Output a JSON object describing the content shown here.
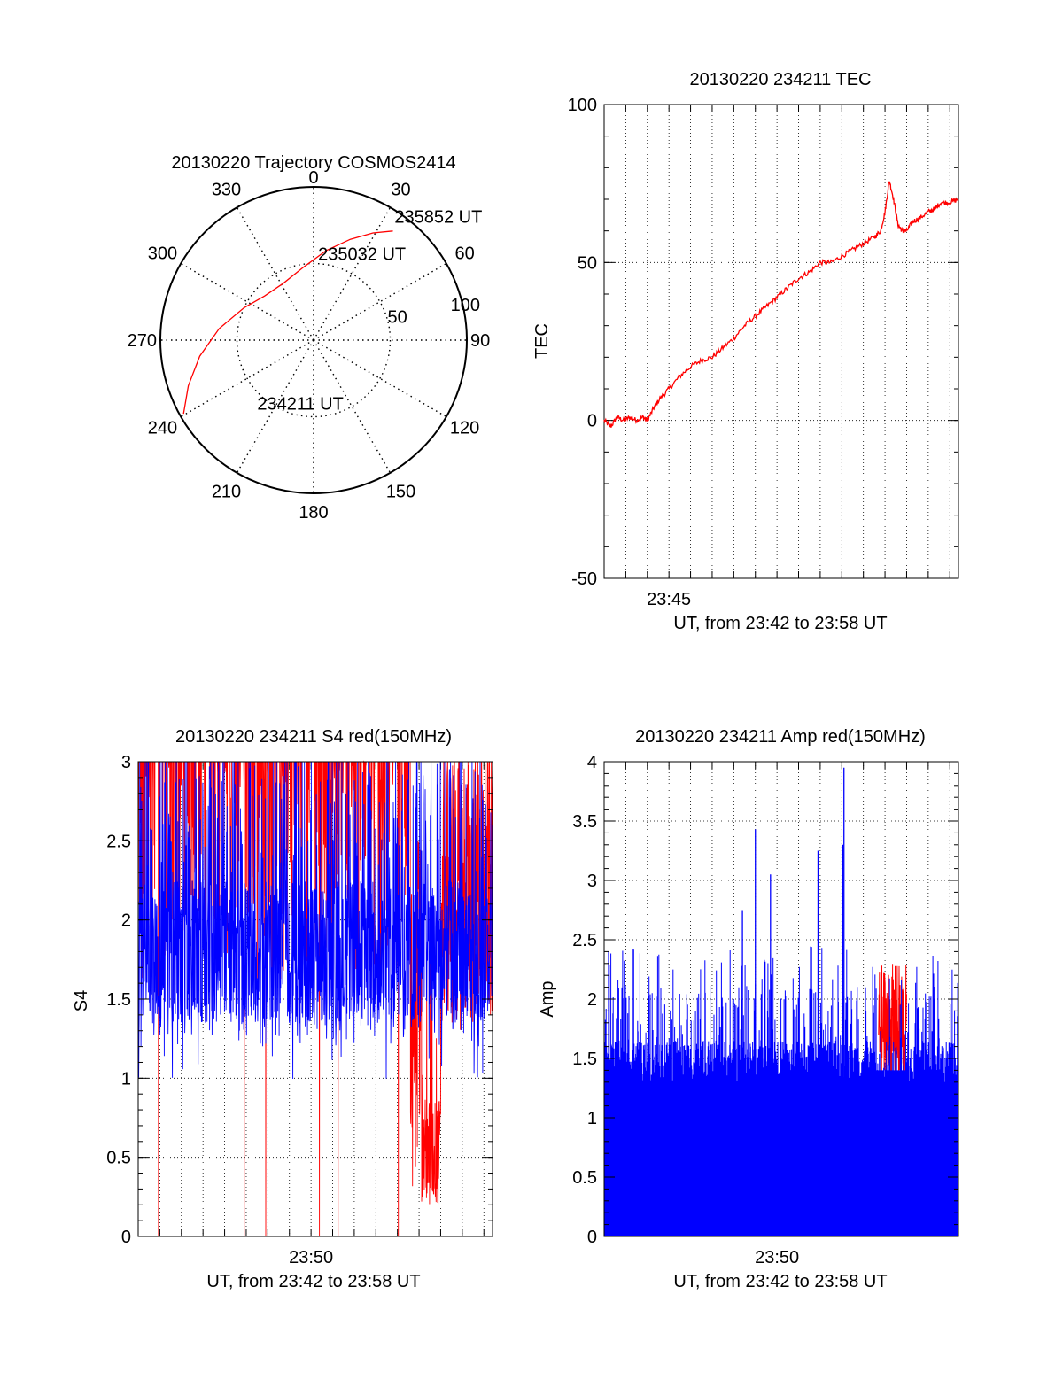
{
  "colors": {
    "red": "#ff0000",
    "blue": "#0000ff",
    "axis": "#000000",
    "grid": "#000000"
  },
  "chart_data": [
    {
      "type": "polar",
      "title": "20130220 Trajectory COSMOS2414",
      "angle_labels": [
        "0",
        "30",
        "60",
        "90",
        "120",
        "150",
        "180",
        "210",
        "240",
        "270",
        "300",
        "330"
      ],
      "radial_labels": [
        "50",
        "100"
      ],
      "radial_label_values": [
        50,
        100
      ],
      "rlim": [
        0,
        100
      ],
      "grid": true,
      "trajectory": {
        "color": "red",
        "points": [
          {
            "az": 240.5,
            "r": 97.5
          },
          {
            "az": 250,
            "r": 87
          },
          {
            "az": 262,
            "r": 75
          },
          {
            "az": 277,
            "r": 62
          },
          {
            "az": 295,
            "r": 50
          },
          {
            "az": 312,
            "r": 43
          },
          {
            "az": 332,
            "r": 42
          },
          {
            "az": 352,
            "r": 48
          },
          {
            "az": 8,
            "r": 59
          },
          {
            "az": 20,
            "r": 70
          },
          {
            "az": 29,
            "r": 80
          },
          {
            "az": 36,
            "r": 88
          }
        ]
      },
      "annotations": [
        {
          "text": "235852 UT",
          "az": 33,
          "r": 97
        },
        {
          "text": "235032 UT",
          "az": 3,
          "r": 57
        },
        {
          "text": "234211 UT",
          "az": 222,
          "r": 55
        }
      ]
    },
    {
      "type": "line",
      "title": "20130220 234211 TEC",
      "ylabel": "TEC",
      "xlabel": "UT, from 23:42 to 23:58 UT",
      "x_tick_labels": [
        "23:45"
      ],
      "x_tick_values": [
        3
      ],
      "xlim": [
        0,
        16.4
      ],
      "ylim": [
        -50,
        100
      ],
      "y_ticks": [
        -50,
        0,
        50,
        100
      ],
      "grid": true,
      "series": [
        {
          "color": "red",
          "x": [
            0,
            0.3,
            0.6,
            0.9,
            1.2,
            1.5,
            1.8,
            2.0,
            2.3,
            2.6,
            3.0,
            3.5,
            4.0,
            4.5,
            5.0,
            5.5,
            6.0,
            6.5,
            7.0,
            7.5,
            8.0,
            8.5,
            9.0,
            9.5,
            10.0,
            10.5,
            11.0,
            11.5,
            12.0,
            12.5,
            12.8,
            13.0,
            13.2,
            13.4,
            13.6,
            13.8,
            14.0,
            14.3,
            14.6,
            15.0,
            15.3,
            15.6,
            16.0,
            16.4
          ],
          "values": [
            0,
            -2,
            1,
            0,
            1,
            0,
            1,
            0,
            4,
            7,
            10,
            14,
            17,
            19,
            20,
            23,
            26,
            30,
            33,
            36,
            39,
            42,
            45,
            47,
            50,
            50,
            52,
            54,
            56,
            58,
            60,
            66,
            76,
            70,
            62,
            60,
            60,
            63,
            64,
            66,
            67,
            69,
            69,
            70
          ]
        }
      ]
    },
    {
      "type": "line",
      "title": "20130220 234211 S4 red(150MHz)",
      "ylabel": "S4",
      "xlabel": "UT, from 23:42 to 23:58 UT",
      "x_tick_labels": [
        "23:50"
      ],
      "x_tick_values": [
        8
      ],
      "xlim": [
        0,
        16.4
      ],
      "ylim": [
        0,
        3
      ],
      "y_ticks": [
        0,
        0.5,
        1,
        1.5,
        2,
        2.5,
        3
      ],
      "y_tick_labels": [
        "0",
        "0.5",
        "1",
        "1.5",
        "2",
        "2.5",
        "3"
      ],
      "grid": true,
      "series": [
        {
          "color": "red",
          "summary": "noisy, mostly saturated at 3 from 23:42 to 23:55 with drops to 0.2-0.5 near 23:55",
          "min_region": {
            "x": [
              13.0,
              14.0
            ],
            "y": 0.2
          }
        },
        {
          "color": "blue",
          "summary": "noisy between 0.95 and 3, median about 1.8"
        }
      ]
    },
    {
      "type": "line",
      "title": "20130220 234211 Amp red(150MHz)",
      "ylabel": "Amp",
      "xlabel": "UT, from 23:42 to 23:58 UT",
      "x_tick_labels": [
        "23:50"
      ],
      "x_tick_values": [
        8
      ],
      "xlim": [
        0,
        16.4
      ],
      "ylim": [
        0,
        4
      ],
      "y_ticks": [
        0,
        0.5,
        1,
        1.5,
        2,
        2.5,
        3,
        3.5,
        4
      ],
      "y_tick_labels": [
        "0",
        "0.5",
        "1",
        "1.5",
        "2",
        "2.5",
        "3",
        "3.5",
        "4"
      ],
      "grid": true,
      "series": [
        {
          "color": "blue",
          "summary": "dense noise filled from 0 to about 1.4-2.4, spikes to 3.4 near 23:48.6 and 3.9 near 23:53.2"
        },
        {
          "color": "red",
          "summary": "small burst 1.2-2.3 near 23:55"
        }
      ],
      "peaks": [
        {
          "x": 6.4,
          "y": 2.75
        },
        {
          "x": 7.0,
          "y": 3.43
        },
        {
          "x": 7.7,
          "y": 3.05
        },
        {
          "x": 9.9,
          "y": 3.25
        },
        {
          "x": 11.1,
          "y": 3.95
        },
        {
          "x": 11.05,
          "y": 3.3
        }
      ]
    }
  ]
}
